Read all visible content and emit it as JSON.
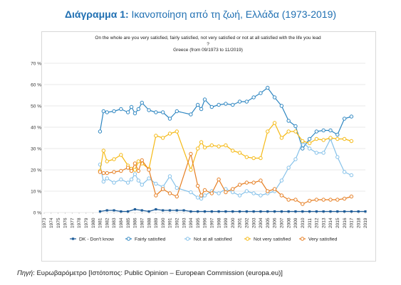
{
  "header": {
    "title_bold": "Διάγραμμα 1:",
    "title_rest": " Ικανοποίηση από τη ζωή, Ελλάδα (1973-2019)"
  },
  "question": {
    "line1": "On the whole are you very satisfied, fairly satisfied, not very satisfied or not at all satisfied with the life you lead",
    "line2": "?",
    "line3": "Greece (from 09/1973 to 11/2019)"
  },
  "footer": {
    "source_label": "Πηγή",
    "source_text": ": Ευρωβαρόμετρο [Ιστότοπος: Public Opinion – European Commission (europa.eu)]"
  },
  "chart_data": {
    "type": "line",
    "x": [
      "1973",
      "1974",
      "1975",
      "1976",
      "1977",
      "1978",
      "1979",
      "1980",
      "1981",
      "1982",
      "1983",
      "1984",
      "1985",
      "1986",
      "1987",
      "1988",
      "1989",
      "1990",
      "1991",
      "1992",
      "1993",
      "1994",
      "1995",
      "1996",
      "1997",
      "1998",
      "1999",
      "2000",
      "2001",
      "2002",
      "2003",
      "2004",
      "2005",
      "2006",
      "2007",
      "2008",
      "2009",
      "2010",
      "2011",
      "2012",
      "2013",
      "2014",
      "2015",
      "2016",
      "2017",
      "2018",
      "2019"
    ],
    "ylim": [
      0,
      70
    ],
    "yticks": [
      "0 %",
      "10 %",
      "20 %",
      "30 %",
      "40 %",
      "50 %",
      "60 %",
      "70 %"
    ],
    "grid": true,
    "legend_position": "bottom",
    "series": [
      {
        "name": "DK - Don't know",
        "color": "#1f5d99",
        "points": [
          [
            1981.0,
            0.5
          ],
          [
            1982.0,
            1.0
          ],
          [
            1983.0,
            1.0
          ],
          [
            1984.0,
            0.5
          ],
          [
            1985.0,
            0.5
          ],
          [
            1986.0,
            1.5
          ],
          [
            1987.0,
            1.0
          ],
          [
            1988.0,
            0.5
          ],
          [
            1989.0,
            1.5
          ],
          [
            1990.0,
            1.0
          ],
          [
            1991.0,
            1.0
          ],
          [
            1992.0,
            1.0
          ],
          [
            1993.0,
            1.0
          ],
          [
            1994.0,
            0.5
          ],
          [
            1995.0,
            0.5
          ],
          [
            1996.0,
            0.5
          ],
          [
            1997.0,
            0.5
          ],
          [
            1998.0,
            0.5
          ],
          [
            1999.0,
            0.5
          ],
          [
            2000.0,
            0.5
          ],
          [
            2001.0,
            0.5
          ],
          [
            2002.0,
            0.5
          ],
          [
            2003.0,
            0.5
          ],
          [
            2004.0,
            0.5
          ],
          [
            2005.0,
            0.5
          ],
          [
            2006.0,
            0.5
          ],
          [
            2007.0,
            0.5
          ],
          [
            2008.0,
            0.5
          ],
          [
            2009.0,
            0.5
          ],
          [
            2010.0,
            0.5
          ],
          [
            2011.0,
            0.5
          ],
          [
            2012.0,
            0.5
          ],
          [
            2013.0,
            0.5
          ],
          [
            2014.0,
            0.5
          ],
          [
            2015.0,
            0.5
          ],
          [
            2016.0,
            0.5
          ],
          [
            2017.0,
            0.5
          ],
          [
            2018.0,
            0.5
          ],
          [
            2019.0,
            0.5
          ]
        ]
      },
      {
        "name": "Fairly satisfied",
        "color": "#2e86c1",
        "points": [
          [
            1981.0,
            38
          ],
          [
            1981.5,
            47.5
          ],
          [
            1982.0,
            47
          ],
          [
            1983.0,
            47.5
          ],
          [
            1984.0,
            48.5
          ],
          [
            1985.0,
            47
          ],
          [
            1985.5,
            49.5
          ],
          [
            1986.0,
            46.5
          ],
          [
            1986.5,
            48.5
          ],
          [
            1987.0,
            51.5
          ],
          [
            1988.0,
            48
          ],
          [
            1989.0,
            47
          ],
          [
            1990.0,
            47
          ],
          [
            1991.0,
            44
          ],
          [
            1992.0,
            47.5
          ],
          [
            1994.0,
            46
          ],
          [
            1995.0,
            50.5
          ],
          [
            1995.5,
            48.5
          ],
          [
            1996.0,
            53
          ],
          [
            1997.0,
            49.5
          ],
          [
            1998.0,
            50.5
          ],
          [
            1999.0,
            51
          ],
          [
            2000.0,
            50.5
          ],
          [
            2001.0,
            52
          ],
          [
            2002.0,
            52
          ],
          [
            2003.0,
            54
          ],
          [
            2004.0,
            56
          ],
          [
            2005.0,
            58.5
          ],
          [
            2006.0,
            54
          ],
          [
            2007.0,
            50
          ],
          [
            2008.0,
            43
          ],
          [
            2009.0,
            40.5
          ],
          [
            2010.0,
            30
          ],
          [
            2011.0,
            34.5
          ],
          [
            2012.0,
            38
          ],
          [
            2013.0,
            38.5
          ],
          [
            2014.0,
            38.5
          ],
          [
            2015.0,
            36.5
          ],
          [
            2016.0,
            44
          ],
          [
            2017.0,
            45
          ]
        ]
      },
      {
        "name": "Not at all satisfied",
        "color": "#85c1e9",
        "points": [
          [
            1981.0,
            22.5
          ],
          [
            1981.5,
            14.5
          ],
          [
            1982.0,
            16
          ],
          [
            1983.0,
            14
          ],
          [
            1984.0,
            15.5
          ],
          [
            1985.0,
            14
          ],
          [
            1985.5,
            15.5
          ],
          [
            1986.0,
            18
          ],
          [
            1986.5,
            15
          ],
          [
            1987.0,
            13
          ],
          [
            1988.0,
            16
          ],
          [
            1989.0,
            13.5
          ],
          [
            1990.0,
            12
          ],
          [
            1991.0,
            17
          ],
          [
            1992.0,
            11.5
          ],
          [
            1994.0,
            9.5
          ],
          [
            1995.0,
            7
          ],
          [
            1995.5,
            6.5
          ],
          [
            1996.0,
            8
          ],
          [
            1997.0,
            10
          ],
          [
            1998.0,
            9
          ],
          [
            1999.0,
            11
          ],
          [
            2000.0,
            9.5
          ],
          [
            2001.0,
            8
          ],
          [
            2002.0,
            10
          ],
          [
            2003.0,
            9
          ],
          [
            2004.0,
            8
          ],
          [
            2005.0,
            9
          ],
          [
            2006.0,
            10
          ],
          [
            2007.0,
            15
          ],
          [
            2008.0,
            21
          ],
          [
            2009.0,
            25
          ],
          [
            2010.0,
            33
          ],
          [
            2011.0,
            30
          ],
          [
            2012.0,
            28
          ],
          [
            2013.0,
            28
          ],
          [
            2014.0,
            34.5
          ],
          [
            2015.0,
            26
          ],
          [
            2016.0,
            19
          ],
          [
            2017.0,
            17.5
          ]
        ]
      },
      {
        "name": "Not very satisfied",
        "color": "#f5b914",
        "points": [
          [
            1981.0,
            19.5
          ],
          [
            1981.5,
            29
          ],
          [
            1982.0,
            24
          ],
          [
            1983.0,
            25
          ],
          [
            1984.0,
            27
          ],
          [
            1985.0,
            22
          ],
          [
            1985.5,
            20.5
          ],
          [
            1986.0,
            20
          ],
          [
            1986.5,
            24
          ],
          [
            1987.0,
            23
          ],
          [
            1988.0,
            20.5
          ],
          [
            1989.0,
            36
          ],
          [
            1990.0,
            35
          ],
          [
            1991.0,
            37
          ],
          [
            1992.0,
            38
          ],
          [
            1994.0,
            20
          ],
          [
            1995.0,
            30
          ],
          [
            1995.5,
            33
          ],
          [
            1996.0,
            30.5
          ],
          [
            1997.0,
            31.5
          ],
          [
            1998.0,
            31
          ],
          [
            1999.0,
            31.5
          ],
          [
            2000.0,
            29
          ],
          [
            2001.0,
            28
          ],
          [
            2002.0,
            26
          ],
          [
            2003.0,
            25.5
          ],
          [
            2004.0,
            25.5
          ],
          [
            2005.0,
            38
          ],
          [
            2006.0,
            42
          ],
          [
            2007.0,
            35
          ],
          [
            2008.0,
            38
          ],
          [
            2009.0,
            38
          ],
          [
            2010.0,
            33.5
          ],
          [
            2011.0,
            32.5
          ],
          [
            2012.0,
            34.5
          ],
          [
            2013.0,
            34
          ],
          [
            2014.0,
            35
          ],
          [
            2015.0,
            34.5
          ],
          [
            2016.0,
            34.5
          ],
          [
            2017.0,
            33.5
          ]
        ]
      },
      {
        "name": "Very satisfied",
        "color": "#e67e22",
        "points": [
          [
            1981.0,
            19
          ],
          [
            1981.5,
            18.5
          ],
          [
            1982.0,
            18.5
          ],
          [
            1983.0,
            19
          ],
          [
            1984.0,
            19.5
          ],
          [
            1985.0,
            21
          ],
          [
            1985.5,
            19.5
          ],
          [
            1986.0,
            23
          ],
          [
            1986.5,
            19.5
          ],
          [
            1987.0,
            24.5
          ],
          [
            1988.0,
            20
          ],
          [
            1989.0,
            8
          ],
          [
            1990.0,
            11
          ],
          [
            1991.0,
            9
          ],
          [
            1992.0,
            7.5
          ],
          [
            1994.0,
            27.5
          ],
          [
            1995.0,
            12.5
          ],
          [
            1995.5,
            8
          ],
          [
            1996.0,
            10.5
          ],
          [
            1997.0,
            9
          ],
          [
            1998.0,
            15.5
          ],
          [
            1999.0,
            9.5
          ],
          [
            2000.0,
            11
          ],
          [
            2001.0,
            13
          ],
          [
            2002.0,
            14
          ],
          [
            2003.0,
            14
          ],
          [
            2004.0,
            15
          ],
          [
            2005.0,
            10
          ],
          [
            2006.0,
            11
          ],
          [
            2007.0,
            8
          ],
          [
            2008.0,
            6
          ],
          [
            2009.0,
            6
          ],
          [
            2010.0,
            4
          ],
          [
            2011.0,
            5.5
          ],
          [
            2012.0,
            6
          ],
          [
            2013.0,
            6
          ],
          [
            2014.0,
            6
          ],
          [
            2015.0,
            6
          ],
          [
            2016.0,
            6.5
          ],
          [
            2017.0,
            7.5
          ]
        ]
      }
    ]
  }
}
